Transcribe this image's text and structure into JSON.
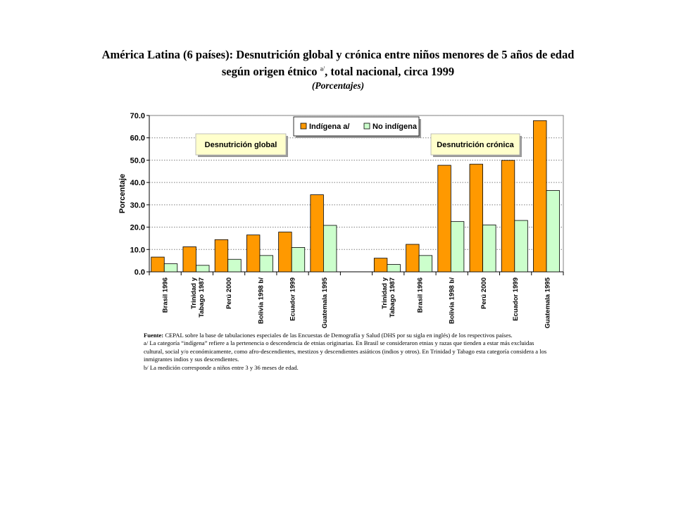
{
  "header": {
    "title_line1": "América Latina (6 países): Desnutrición global y crónica entre niños menores de 5 años de edad",
    "title_line2_pre": "según origen étnico",
    "title_line2_sup": "a/",
    "title_line2_post": ", total nacional, circa 1999",
    "subtitle": "(Porcentajes)"
  },
  "notes": {
    "source_label": "Fuente:",
    "source_text": "CEPAL sobre la base de tabulaciones especiales de las Encuestas de Demografía y Salud (DHS por su sigla en inglés) de los respectivos países.",
    "note_a": "a/ La categoría “indígena” refiere a la pertenencia o descendencia de etnias originarias. En Brasil se consideraron etnias y razas que tienden a estar más excluidas cultural, social y/o económicamente, como afro-descendientes, mestizos y descendientes asiáticos (indios y otros). En Trinidad y Tabago esta categoría considera a los inmigrantes indios y sus descendientes.",
    "note_b": "b/ La medición corresponde a niños entre 3 y 36 meses de edad."
  },
  "chart_data": {
    "type": "bar",
    "ylabel": "Porcentaje",
    "ylim": [
      0,
      70
    ],
    "yticks": [
      "0.0",
      "10.0",
      "20.0",
      "30.0",
      "40.0",
      "50.0",
      "60.0",
      "70.0"
    ],
    "grid": "horizontal-dotted",
    "legend_position": "top-center",
    "colors": {
      "indigena": "#ff9900",
      "no_indigena": "#ccffcc"
    },
    "series": [
      {
        "name": "Indígena a/",
        "color": "#ff9900"
      },
      {
        "name": "No indígena",
        "color": "#ccffcc"
      }
    ],
    "groups": [
      {
        "label": "Desnutrición global",
        "categories": [
          {
            "label": "Brasil 1996",
            "values": [
              6.6,
              3.6
            ]
          },
          {
            "label": "Trinidad y\nTabago 1987",
            "values": [
              11.2,
              2.9
            ]
          },
          {
            "label": "Perú  2000",
            "values": [
              14.4,
              5.6
            ]
          },
          {
            "label": "Bolivia 1998 b/",
            "values": [
              16.5,
              7.3
            ]
          },
          {
            "label": "Ecuador 1999",
            "values": [
              17.8,
              10.9
            ]
          },
          {
            "label": "Guatemala 1995",
            "values": [
              34.5,
              20.8
            ]
          }
        ]
      },
      {
        "label": "Desnutrición crónica",
        "categories": [
          {
            "label": "Trinidad y\nTabago 1987",
            "values": [
              6.1,
              3.3
            ]
          },
          {
            "label": "Brasil 1996",
            "values": [
              12.3,
              7.3
            ]
          },
          {
            "label": "Bolivia 1998 b/",
            "values": [
              47.7,
              22.5
            ]
          },
          {
            "label": "Perú  2000",
            "values": [
              48.2,
              21.0
            ]
          },
          {
            "label": "Ecuador 1999",
            "values": [
              49.9,
              23.0
            ]
          },
          {
            "label": "Guatemala 1995",
            "values": [
              67.7,
              36.4
            ]
          }
        ]
      }
    ]
  }
}
